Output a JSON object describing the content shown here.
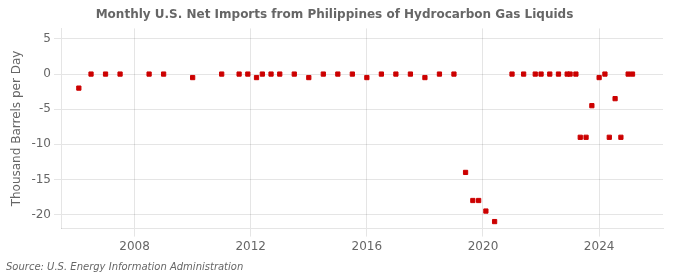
{
  "chart_data": {
    "type": "scatter",
    "title": "Monthly U.S. Net Imports from Philippines of Hydrocarbon Gas Liquids",
    "y_label": "Thousand Barrels per Day",
    "annotations": [
      "Source: U.S. Energy Information Administration"
    ],
    "color": "#cc0000",
    "marker": "square",
    "grid": true,
    "xlim": [
      2005.5,
      2026.2
    ],
    "xticks": [
      2008,
      2012,
      2016,
      2020,
      2024
    ],
    "ylim": [
      -22,
      6.5
    ],
    "yticks": [
      5,
      0,
      -5,
      -10,
      -15,
      -20
    ],
    "x": [
      2006.08,
      2006.5,
      2007.0,
      2007.5,
      2008.5,
      2009.0,
      2010.0,
      2011.0,
      2011.6,
      2011.9,
      2012.2,
      2012.4,
      2012.7,
      2013.0,
      2013.5,
      2014.0,
      2014.5,
      2015.0,
      2015.5,
      2016.0,
      2016.5,
      2017.0,
      2017.5,
      2018.0,
      2018.5,
      2019.0,
      2019.4,
      2019.65,
      2019.85,
      2020.1,
      2020.4,
      2021.0,
      2021.4,
      2021.8,
      2022.0,
      2022.3,
      2022.6,
      2022.9,
      2023.0,
      2023.2,
      2023.35,
      2023.55,
      2023.75,
      2024.0,
      2024.2,
      2024.35,
      2024.55,
      2024.75,
      2025.0,
      2025.15
    ],
    "values": [
      -2.0,
      0.0,
      0.0,
      0.0,
      0.0,
      0.0,
      -0.5,
      0.0,
      0.0,
      0.0,
      -0.5,
      0.0,
      0.0,
      0.0,
      0.0,
      -0.5,
      0.0,
      0.0,
      0.0,
      -0.5,
      0.0,
      0.0,
      0.0,
      -0.5,
      0.0,
      0.0,
      -14.0,
      -18.0,
      -18.0,
      -19.5,
      -21.0,
      0.0,
      0.0,
      0.0,
      0.0,
      0.0,
      0.0,
      0.0,
      0.0,
      0.0,
      -9.0,
      -9.0,
      -4.5,
      -0.5,
      0.0,
      -9.0,
      -3.5,
      -9.0,
      0.0,
      0.0
    ]
  }
}
